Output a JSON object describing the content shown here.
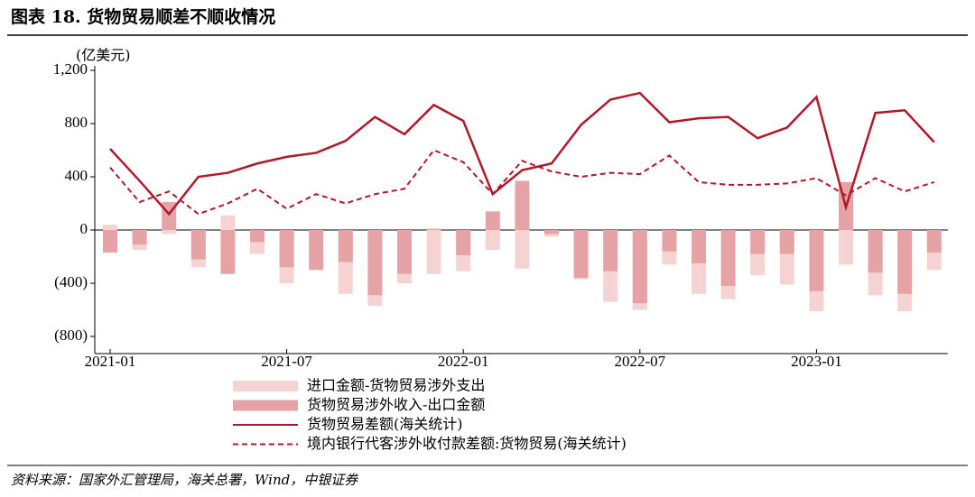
{
  "chart_data": {
    "type": "bar-line",
    "title": "图表 18. 货物贸易顺差不顺收情况",
    "y_label": "(亿美元)",
    "source": "资料来源：国家外汇管理局，海关总署，Wind，中银证券",
    "categories": [
      "2021-01",
      null,
      null,
      null,
      null,
      null,
      "2021-07",
      null,
      null,
      null,
      null,
      null,
      "2022-01",
      null,
      null,
      null,
      null,
      null,
      "2022-07",
      null,
      null,
      null,
      null,
      null,
      "2023-01",
      null,
      null,
      null,
      null
    ],
    "ylim": [
      -800,
      1200
    ],
    "yticks": [
      {
        "value": -800,
        "label": "(800)"
      },
      {
        "value": -400,
        "label": "(400)"
      },
      0,
      400,
      800,
      {
        "value": 1200,
        "label": "1,200"
      }
    ],
    "negative_tick_color": "#c00000",
    "series": [
      {
        "name": "进口金额-货物贸易涉外支出",
        "type": "bar",
        "color": "#f6d3d3",
        "values": [
          40,
          -150,
          -30,
          -280,
          110,
          -180,
          -400,
          -280,
          -480,
          -570,
          -400,
          -330,
          -310,
          -150,
          -290,
          -50,
          -370,
          -540,
          -600,
          -260,
          -480,
          -520,
          -340,
          -410,
          -610,
          -260,
          -490,
          -610,
          -300
        ]
      },
      {
        "name": "货物贸易涉外收入-出口金额",
        "type": "bar",
        "color": "#e6a3a6",
        "values": [
          -170,
          -110,
          210,
          -220,
          -330,
          -90,
          -280,
          -300,
          -240,
          -490,
          -330,
          10,
          -190,
          140,
          370,
          -30,
          -360,
          -310,
          -550,
          -160,
          -250,
          -420,
          -180,
          -180,
          -460,
          360,
          -320,
          -480,
          -170
        ]
      },
      {
        "name": "货物贸易差额(海关统计)",
        "type": "line",
        "color": "#b0182b",
        "dashed": false,
        "values": [
          610,
          370,
          120,
          400,
          430,
          500,
          550,
          580,
          670,
          850,
          720,
          940,
          820,
          270,
          450,
          500,
          790,
          980,
          1030,
          810,
          840,
          850,
          690,
          770,
          1000,
          170,
          880,
          900,
          660
        ]
      },
      {
        "name": "境内银行代客涉外收付款差额:货物贸易(海关统计)",
        "type": "line",
        "color": "#b0182b",
        "dashed": true,
        "values": [
          470,
          210,
          290,
          120,
          200,
          310,
          160,
          270,
          200,
          270,
          310,
          600,
          510,
          270,
          520,
          440,
          400,
          430,
          420,
          560,
          360,
          340,
          340,
          350,
          390,
          260,
          390,
          290,
          360
        ]
      }
    ]
  }
}
